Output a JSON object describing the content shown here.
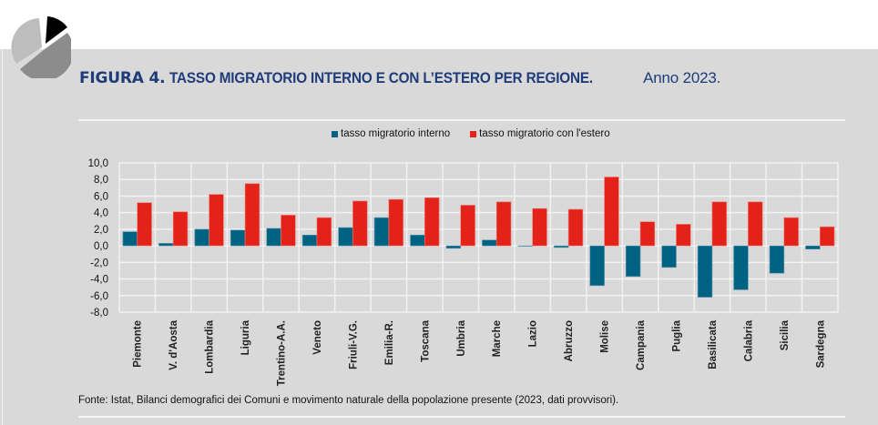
{
  "header": {
    "figure_label": "FIGURA 4.",
    "title": "TASSO MIGRATORIO INTERNO E CON L’ESTERO PER REGIONE.",
    "year_label": "Anno 2023."
  },
  "colors": {
    "interno": "#006282",
    "estero": "#e3231a",
    "title": "#1f3c7a",
    "background": "#d9d9d9"
  },
  "source_note": "Fonte: Istat, Bilanci demografici dei Comuni e movimento naturale della popolazione presente (2023, dati provvisori).",
  "chart_data": {
    "type": "bar",
    "title": "TASSO MIGRATORIO INTERNO E CON L’ESTERO PER REGIONE. Anno 2023.",
    "xlabel": "",
    "ylabel": "",
    "ylim": [
      -8,
      10
    ],
    "yticks": [
      10,
      8,
      6,
      4,
      2,
      0,
      -2,
      -4,
      -6,
      -8
    ],
    "ytick_labels": [
      "10,0",
      "8,0",
      "6,0",
      "4,0",
      "2,0",
      "0,0",
      "-2,0",
      "-4,0",
      "-6,0",
      "-8,0"
    ],
    "grid": true,
    "legend_position": "top-center",
    "categories": [
      "Piemonte",
      "V. d'Aosta",
      "Lombardia",
      "Liguria",
      "Trentino-A.A.",
      "Veneto",
      "Friuli-V.G.",
      "Emilia-R.",
      "Toscana",
      "Umbria",
      "Marche",
      "Lazio",
      "Abruzzo",
      "Molise",
      "Campania",
      "Puglia",
      "Basilicata",
      "Calabria",
      "Sicilia",
      "Sardegna"
    ],
    "series": [
      {
        "name": "tasso migratorio interno",
        "color": "#006282",
        "values": [
          1.7,
          0.3,
          2.0,
          1.9,
          2.1,
          1.3,
          2.2,
          3.4,
          1.3,
          -0.3,
          0.7,
          0.0,
          -0.2,
          -4.8,
          -3.7,
          -2.6,
          -6.2,
          -5.3,
          -3.3,
          -0.4
        ]
      },
      {
        "name": "tasso migratorio con l'estero",
        "color": "#e3231a",
        "values": [
          5.2,
          4.1,
          6.2,
          7.5,
          3.7,
          3.4,
          5.4,
          5.6,
          5.8,
          4.9,
          5.3,
          4.5,
          4.4,
          8.3,
          2.9,
          2.6,
          5.3,
          5.3,
          3.4,
          2.3
        ]
      }
    ]
  }
}
